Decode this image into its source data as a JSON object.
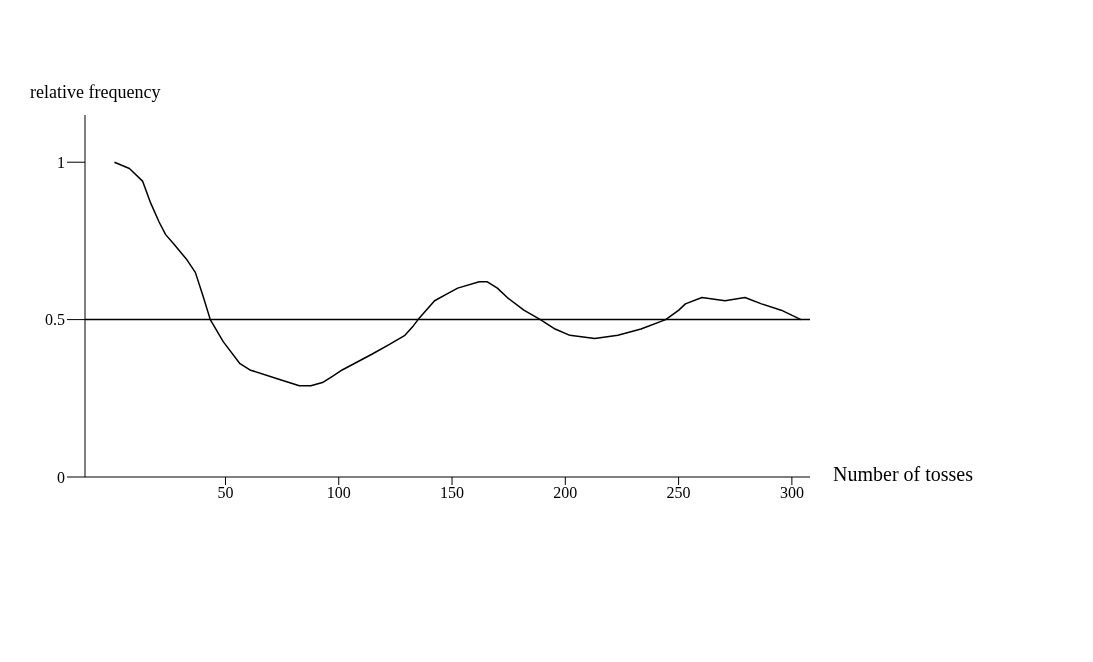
{
  "chart_data": {
    "type": "line",
    "xlabel": "Number of tosses",
    "ylabel": "relative frequency",
    "x": [
      1,
      7.6,
      13.4,
      17,
      20.7,
      23.6,
      27.2,
      33,
      36.7,
      40.3,
      43.3,
      49,
      56.4,
      60.8,
      73.9,
      82.6,
      87.7,
      92.8,
      97.2,
      101.5,
      114.6,
      122,
      129.2,
      132.9,
      135,
      142.3,
      147.4,
      152.5,
      162,
      165.6,
      170,
      174.4,
      181.7,
      189,
      195.5,
      202,
      213,
      223.2,
      233.4,
      244.3,
      250.1,
      253,
      260.3,
      270.5,
      279.3,
      286.6,
      295.3,
      304
    ],
    "series": [
      {
        "color": "#000000",
        "values": [
          1.0,
          0.98,
          0.94,
          0.87,
          0.81,
          0.77,
          0.74,
          0.69,
          0.65,
          0.57,
          0.5,
          0.43,
          0.36,
          0.34,
          0.31,
          0.29,
          0.29,
          0.3,
          0.32,
          0.34,
          0.39,
          0.42,
          0.45,
          0.48,
          0.5,
          0.56,
          0.58,
          0.6,
          0.62,
          0.62,
          0.6,
          0.57,
          0.53,
          0.5,
          0.47,
          0.45,
          0.44,
          0.45,
          0.47,
          0.5,
          0.53,
          0.55,
          0.57,
          0.56,
          0.57,
          0.55,
          0.53,
          0.5
        ]
      }
    ],
    "xlim": [
      -12,
      308
    ],
    "xticks": [
      50,
      100,
      150,
      200,
      250,
      300
    ],
    "ylim": [
      0,
      1.15
    ],
    "yticks": [
      0,
      0.5,
      1
    ],
    "ref_lines": [
      {
        "axis": "y",
        "value": 0.5,
        "color": "#000000"
      }
    ],
    "grid": false,
    "legend": false,
    "marker": "none",
    "line_style": "solid"
  }
}
